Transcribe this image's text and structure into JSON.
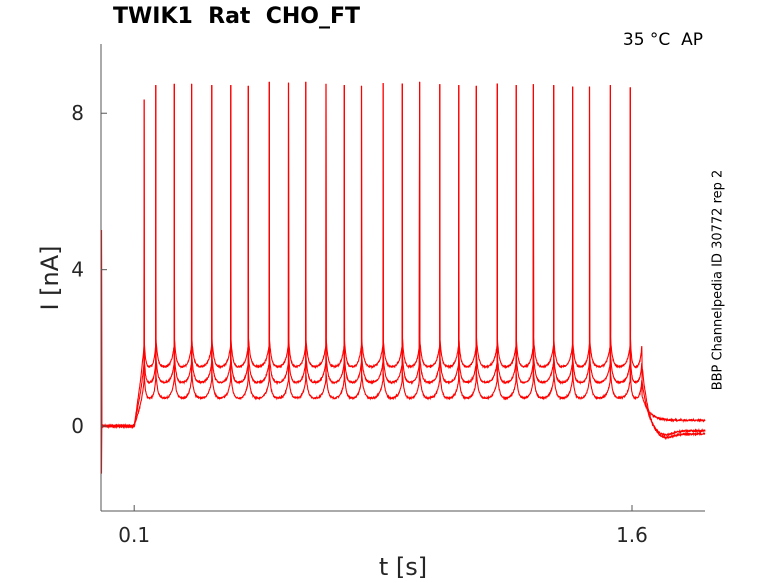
{
  "chart_data": {
    "type": "line",
    "title": "TWIK1  Rat  CHO_FT",
    "annotation": "35 °C  AP",
    "side_label": "BBP Channelpedia ID 30772 rep 2",
    "xlabel": "t [s]",
    "ylabel": "I [nA]",
    "xlim": [
      0.0,
      1.82
    ],
    "ylim": [
      -2.17,
      9.77
    ],
    "xticks": [
      {
        "value": 0.1,
        "label": "0.1"
      },
      {
        "value": 1.6,
        "label": "1.6"
      }
    ],
    "yticks": [
      {
        "value": 0,
        "label": "0"
      },
      {
        "value": 4,
        "label": "4"
      },
      {
        "value": 8,
        "label": "8"
      }
    ],
    "grid": false,
    "color": "#ff0000",
    "stimulus_window": [
      0.1,
      1.63
    ],
    "spike_times": [
      0.13,
      0.165,
      0.221,
      0.273,
      0.334,
      0.391,
      0.444,
      0.507,
      0.565,
      0.617,
      0.678,
      0.733,
      0.785,
      0.85,
      0.908,
      0.96,
      1.021,
      1.078,
      1.131,
      1.194,
      1.251,
      1.303,
      1.364,
      1.421,
      1.472,
      1.535,
      1.595
    ],
    "spike_peaks": [
      8.35,
      8.72,
      8.75,
      8.75,
      8.72,
      8.72,
      8.7,
      8.8,
      8.78,
      8.8,
      8.75,
      8.72,
      8.7,
      8.77,
      8.76,
      8.8,
      8.74,
      8.72,
      8.7,
      8.76,
      8.72,
      8.74,
      8.72,
      8.68,
      8.68,
      8.72,
      8.66
    ],
    "series": [
      {
        "trough": 0.7,
        "pre_spike": 1.2,
        "pre_level": 0.0,
        "post_level": 0.15
      },
      {
        "trough": 1.1,
        "pre_spike": 1.65,
        "pre_level": 0.0,
        "post_level": -0.12
      },
      {
        "trough": 1.5,
        "pre_spike": 2.1,
        "pre_level": 0.0,
        "post_level": -0.2
      }
    ]
  }
}
